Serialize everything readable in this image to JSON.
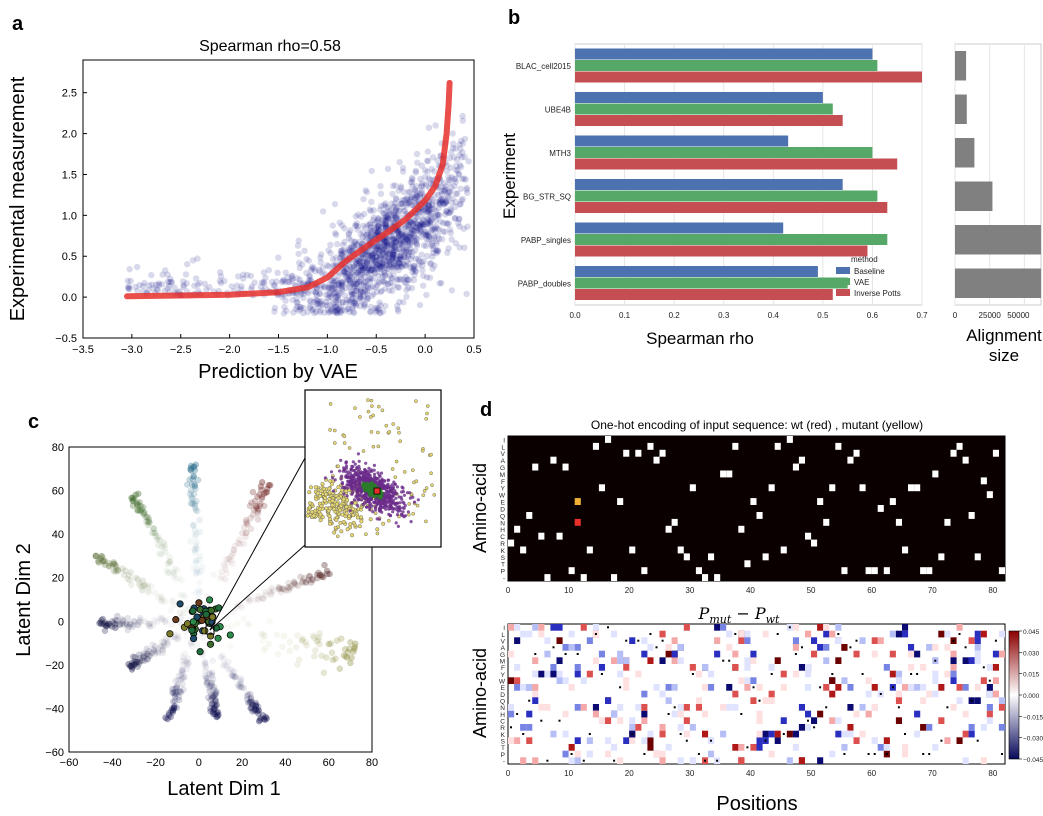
{
  "panels": {
    "a": {
      "letter": "a"
    },
    "b": {
      "letter": "b"
    },
    "c": {
      "letter": "c"
    },
    "d": {
      "letter": "d"
    }
  },
  "chart_data": [
    {
      "id": "a",
      "type": "scatter",
      "title": "Spearman rho=0.58",
      "xlabel": "Prediction by VAE",
      "ylabel": "Experimental measurement",
      "xlim": [
        -3.5,
        0.5
      ],
      "ylim": [
        -0.5,
        2.9
      ],
      "xticks": [
        -3.5,
        -3.0,
        -2.5,
        -2.0,
        -1.5,
        -1.0,
        -0.5,
        0.0,
        0.5
      ],
      "xtick_labels": [
        "−3.5",
        "−3.0",
        "−2.5",
        "−2.0",
        "−1.5",
        "−1.0",
        "−0.5",
        "0.0",
        "0.5"
      ],
      "yticks": [
        -0.5,
        0.0,
        0.5,
        1.0,
        1.5,
        2.0,
        2.5
      ],
      "ytick_labels": [
        "−0.5",
        "0.0",
        "0.5",
        "1.0",
        "1.5",
        "2.0",
        "2.5"
      ],
      "point_color": "#000080",
      "fit_color": "#e8302b",
      "fit_line": [
        [
          -3.05,
          0.01
        ],
        [
          -2.5,
          0.02
        ],
        [
          -2.0,
          0.03
        ],
        [
          -1.5,
          0.06
        ],
        [
          -1.2,
          0.12
        ],
        [
          -1.0,
          0.24
        ],
        [
          -0.8,
          0.45
        ],
        [
          -0.6,
          0.62
        ],
        [
          -0.4,
          0.78
        ],
        [
          -0.2,
          0.95
        ],
        [
          0.0,
          1.18
        ],
        [
          0.1,
          1.35
        ],
        [
          0.18,
          1.62
        ],
        [
          0.22,
          2.0
        ],
        [
          0.24,
          2.35
        ],
        [
          0.25,
          2.62
        ]
      ]
    },
    {
      "id": "b-main",
      "type": "bar",
      "orientation": "horizontal",
      "xlabel": "Spearman rho",
      "ylabel": "Experiment",
      "xlim": [
        0.0,
        0.7
      ],
      "xticks": [
        0.0,
        0.1,
        0.2,
        0.3,
        0.4,
        0.5,
        0.6,
        0.7
      ],
      "xtick_labels": [
        "0.0",
        "0.1",
        "0.2",
        "0.3",
        "0.4",
        "0.5",
        "0.6",
        "0.7"
      ],
      "categories": [
        "BLAC_cell2015",
        "UBE4B",
        "MTH3",
        "BG_STR_SQ",
        "PABP_singles",
        "PABP_doubles"
      ],
      "series": [
        {
          "name": "Baseline",
          "color": "#4c72b0",
          "values": [
            0.6,
            0.5,
            0.43,
            0.54,
            0.42,
            0.49
          ]
        },
        {
          "name": "VAE",
          "color": "#55a868",
          "values": [
            0.61,
            0.52,
            0.6,
            0.61,
            0.63,
            0.55
          ]
        },
        {
          "name": "Inverse Potts",
          "color": "#c44e52",
          "values": [
            0.7,
            0.54,
            0.65,
            0.63,
            0.59,
            0.52
          ]
        }
      ],
      "legend": {
        "title": "method",
        "placement": "lower-right"
      }
    },
    {
      "id": "b-side",
      "type": "bar",
      "orientation": "horizontal",
      "xlabel_lines": [
        "Alignment",
        "size"
      ],
      "xticks": [
        0,
        25000,
        50000
      ],
      "xtick_labels": [
        "0",
        "25000",
        "50000"
      ],
      "xlim": [
        0,
        62000
      ],
      "categories": [
        "BLAC_cell2015",
        "UBE4B",
        "MTH3",
        "BG_STR_SQ",
        "PABP_singles",
        "PABP_doubles"
      ],
      "values": [
        8000,
        8500,
        14000,
        27000,
        62000,
        62000
      ],
      "color": "#808080"
    },
    {
      "id": "c",
      "type": "scatter",
      "xlabel": "Latent Dim 1",
      "ylabel": "Latent Dim 2",
      "xlim": [
        -60,
        80
      ],
      "ylim": [
        -60,
        80
      ],
      "xticks": [
        -60,
        -40,
        -20,
        0,
        20,
        40,
        60,
        80
      ],
      "xtick_labels": [
        "−60",
        "−40",
        "−20",
        "0",
        "20",
        "40",
        "60",
        "80"
      ],
      "yticks": [
        -60,
        -40,
        -20,
        0,
        20,
        40,
        60,
        80
      ],
      "ytick_labels": [
        "−60",
        "−40",
        "−20",
        "0",
        "20",
        "40",
        "60",
        "80"
      ],
      "arms": [
        {
          "end": [
            -3,
            72
          ],
          "color": "#2e6f8e"
        },
        {
          "end": [
            -30,
            58
          ],
          "color": "#3f6b2a"
        },
        {
          "end": [
            -48,
            30
          ],
          "color": "#556b2f"
        },
        {
          "end": [
            -47,
            -1
          ],
          "color": "#1a1a4a"
        },
        {
          "end": [
            -32,
            -21
          ],
          "color": "#1a1a4a"
        },
        {
          "end": [
            -14,
            -45
          ],
          "color": "#101050"
        },
        {
          "end": [
            8,
            -44
          ],
          "color": "#101050"
        },
        {
          "end": [
            30,
            -46
          ],
          "color": "#101050"
        },
        {
          "end": [
            72,
            -16
          ],
          "color": "#8b8b3a"
        },
        {
          "end": [
            60,
            23
          ],
          "color": "#5a3030"
        },
        {
          "end": [
            32,
            63
          ],
          "color": "#6b1a1a"
        }
      ]
    },
    {
      "id": "d-top",
      "type": "heatmap",
      "title": "One-hot encoding of input sequence: wt (red) , mutant (yellow)",
      "ylabel": "Amino-acid",
      "row_labels": [
        "I",
        "L",
        "V",
        "A",
        "G",
        "M",
        "F",
        "Y",
        "W",
        "E",
        "D",
        "Q",
        "N",
        "H",
        "C",
        "R",
        "K",
        "S",
        "T",
        "P",
        "-"
      ],
      "xticks": [
        0,
        10,
        20,
        30,
        40,
        50,
        60,
        70,
        80
      ],
      "xtick_labels": [
        "0",
        "10",
        "20",
        "30",
        "40",
        "50",
        "60",
        "70",
        "80"
      ],
      "columns": 82,
      "wt_marker": {
        "position": 11,
        "residue": "N",
        "color": "#e8302b"
      },
      "mutant_marker": {
        "position": 11,
        "residue": "E",
        "color": "#f2b134"
      }
    },
    {
      "id": "d-bottom",
      "type": "heatmap",
      "title": "P_mut − P_wt",
      "title_base": "P",
      "title_sub_left": "mut",
      "title_op": " − P",
      "title_sub_right": "wt",
      "ylabel": "Amino-acid",
      "xlabel": "Positions",
      "row_labels": [
        "I",
        "L",
        "V",
        "A",
        "G",
        "M",
        "F",
        "Y",
        "W",
        "E",
        "D",
        "Q",
        "N",
        "H",
        "C",
        "R",
        "K",
        "S",
        "T",
        "P",
        "-"
      ],
      "xticks": [
        0,
        10,
        20,
        30,
        40,
        50,
        60,
        70,
        80
      ],
      "xtick_labels": [
        "0",
        "10",
        "20",
        "30",
        "40",
        "50",
        "60",
        "70",
        "80"
      ],
      "columns": 82,
      "colorbar": {
        "ticks": [
          0.045,
          0.03,
          0.015,
          0.0,
          -0.015,
          -0.03,
          -0.045
        ],
        "tick_labels": [
          "0.045",
          "0.030",
          "0.015",
          "0.000",
          "−0.015",
          "−0.030",
          "−0.045"
        ],
        "colors": [
          "#08085a",
          "#ffffff",
          "#8b0000"
        ]
      }
    }
  ]
}
